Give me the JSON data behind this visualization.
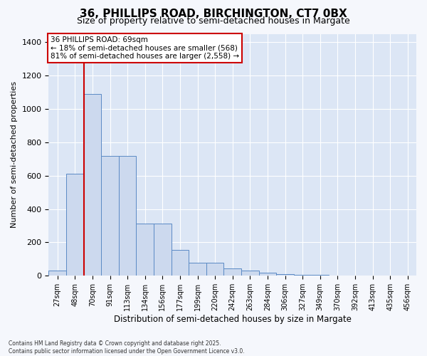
{
  "title_line1": "36, PHILLIPS ROAD, BIRCHINGTON, CT7 0BX",
  "title_line2": "Size of property relative to semi-detached houses in Margate",
  "xlabel": "Distribution of semi-detached houses by size in Margate",
  "ylabel": "Number of semi-detached properties",
  "bar_color": "#ccd9ee",
  "bar_edge_color": "#5b8ac5",
  "fig_bg_color": "#f5f7fc",
  "ax_bg_color": "#dce6f5",
  "grid_color": "#ffffff",
  "annotation_box_color": "#cc0000",
  "vline_color": "#cc0000",
  "bins": [
    "27sqm",
    "48sqm",
    "70sqm",
    "91sqm",
    "113sqm",
    "134sqm",
    "156sqm",
    "177sqm",
    "199sqm",
    "220sqm",
    "242sqm",
    "263sqm",
    "284sqm",
    "306sqm",
    "327sqm",
    "349sqm",
    "370sqm",
    "392sqm",
    "413sqm",
    "435sqm",
    "456sqm"
  ],
  "values": [
    30,
    610,
    1090,
    720,
    720,
    315,
    315,
    155,
    80,
    80,
    45,
    30,
    20,
    10,
    5,
    5,
    2,
    1,
    1,
    0,
    0
  ],
  "property_label": "36 PHILLIPS ROAD: 69sqm",
  "pct_smaller": 18,
  "pct_smaller_count": 568,
  "pct_larger": 81,
  "pct_larger_count": 2558,
  "vline_bin_index": 1,
  "ylim": [
    0,
    1450
  ],
  "yticks": [
    0,
    200,
    400,
    600,
    800,
    1000,
    1200,
    1400
  ],
  "footnote_line1": "Contains HM Land Registry data © Crown copyright and database right 2025.",
  "footnote_line2": "Contains public sector information licensed under the Open Government Licence v3.0."
}
